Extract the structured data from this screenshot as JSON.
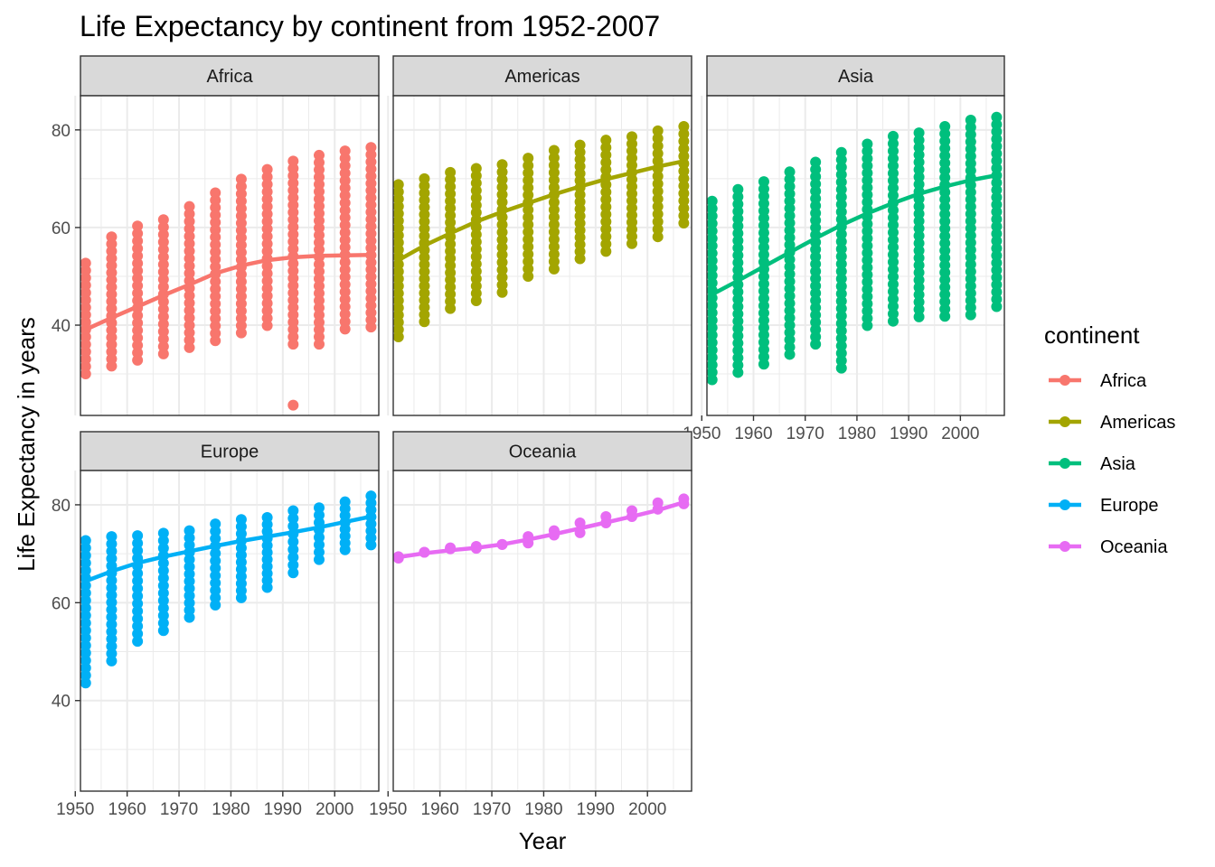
{
  "chart_data": {
    "type": "scatter",
    "title": "Life Expectancy by continent from 1952-2007",
    "xlabel": "Year",
    "ylabel": "Life Expectancy in years",
    "xlim": [
      1951,
      2008.5
    ],
    "ylim": [
      21.5,
      87
    ],
    "x_ticks": [
      1950,
      1960,
      1970,
      1980,
      1990,
      2000
    ],
    "y_ticks": [
      40,
      60,
      80
    ],
    "grid": true,
    "legend": {
      "title": "continent",
      "position": "right"
    },
    "years": [
      1952,
      1957,
      1962,
      1967,
      1972,
      1977,
      1982,
      1987,
      1992,
      1997,
      2002,
      2007
    ],
    "facets": [
      {
        "name": "Africa",
        "color": "#F8766D",
        "ranges": [
          [
            30,
            52.7
          ],
          [
            31.6,
            58.1
          ],
          [
            32.8,
            60.3
          ],
          [
            34.1,
            61.6
          ],
          [
            35.4,
            64.3
          ],
          [
            36.8,
            67.1
          ],
          [
            38.4,
            69.9
          ],
          [
            39.9,
            71.9
          ],
          [
            36.1,
            73.6
          ],
          [
            36.1,
            74.8
          ],
          [
            39.2,
            75.7
          ],
          [
            39.6,
            76.4
          ]
        ],
        "outliers": [
          [
            1992,
            23.6
          ]
        ],
        "trend": [
          39.1,
          41.5,
          43.8,
          46.1,
          48.3,
          50.6,
          52.2,
          53.3,
          53.9,
          54.2,
          54.3,
          54.4
        ]
      },
      {
        "name": "Americas",
        "color": "#A3A500",
        "ranges": [
          [
            37.6,
            68.8
          ],
          [
            40.7,
            70
          ],
          [
            43.4,
            71.3
          ],
          [
            45,
            72.1
          ],
          [
            46.7,
            72.9
          ],
          [
            50,
            74.2
          ],
          [
            51.5,
            75.8
          ],
          [
            53.6,
            76.9
          ],
          [
            55.1,
            77.9
          ],
          [
            56.7,
            78.6
          ],
          [
            58.1,
            79.8
          ],
          [
            60.9,
            80.7
          ]
        ],
        "outliers": [],
        "trend": [
          53.3,
          56.3,
          58.8,
          61.2,
          63.2,
          65,
          66.8,
          68.4,
          69.9,
          71.2,
          72.5,
          73.6
        ]
      },
      {
        "name": "Asia",
        "color": "#00BF7D",
        "ranges": [
          [
            28.8,
            65.4
          ],
          [
            30.3,
            67.8
          ],
          [
            32,
            69.4
          ],
          [
            34,
            71.4
          ],
          [
            36.1,
            73.4
          ],
          [
            31.2,
            75.4
          ],
          [
            39.9,
            77.1
          ],
          [
            40.8,
            78.7
          ],
          [
            41.7,
            79.4
          ],
          [
            41.8,
            80.7
          ],
          [
            42.1,
            82
          ],
          [
            43.8,
            82.6
          ]
        ],
        "outliers": [],
        "trend": [
          46.3,
          49.1,
          52,
          54.9,
          57.8,
          60.5,
          62.9,
          65,
          66.9,
          68.4,
          69.7,
          70.7
        ]
      },
      {
        "name": "Europe",
        "color": "#00B0F6",
        "ranges": [
          [
            43.6,
            72.7
          ],
          [
            48.1,
            73.5
          ],
          [
            52.1,
            73.7
          ],
          [
            54.3,
            74.2
          ],
          [
            57,
            74.7
          ],
          [
            59.5,
            76.1
          ],
          [
            61,
            76.99
          ],
          [
            63.1,
            77.4
          ],
          [
            66.1,
            78.8
          ],
          [
            68.8,
            79.4
          ],
          [
            70.8,
            80.6
          ],
          [
            71.8,
            81.8
          ]
        ],
        "outliers": [],
        "trend": [
          64.4,
          66.4,
          68.1,
          69.4,
          70.5,
          71.6,
          72.6,
          73.5,
          74.4,
          75.4,
          76.5,
          77.6
        ]
      },
      {
        "name": "Oceania",
        "color": "#E76BF3",
        "ranges": [
          [
            69.1,
            69.4
          ],
          [
            70.3,
            70.3
          ],
          [
            71,
            71.2
          ],
          [
            71.1,
            71.5
          ],
          [
            71.9,
            71.9
          ],
          [
            72.2,
            73.5
          ],
          [
            73.8,
            74.7
          ],
          [
            74.3,
            76.3
          ],
          [
            76.3,
            77.6
          ],
          [
            77.6,
            78.8
          ],
          [
            79.1,
            80.4
          ],
          [
            80.2,
            81.2
          ]
        ],
        "outliers": [],
        "trend": [
          69.3,
          70.1,
          70.7,
          71.2,
          71.9,
          72.9,
          74,
          75.2,
          76.4,
          77.6,
          78.9,
          80.5
        ]
      }
    ]
  }
}
